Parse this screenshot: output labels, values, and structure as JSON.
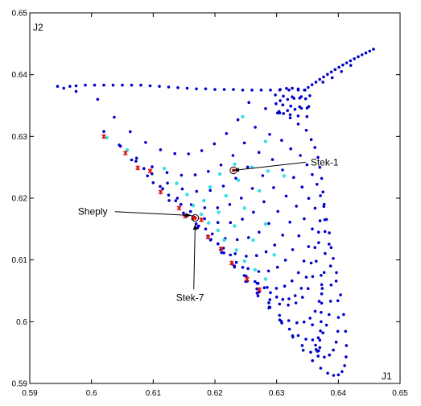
{
  "chart_data": {
    "type": "scatter",
    "xlabel": "J1",
    "ylabel": "J2",
    "xlim": [
      0.59,
      0.65
    ],
    "ylim": [
      0.59,
      0.65
    ],
    "xticks": [
      "0.59",
      "0.6",
      "0.61",
      "0.62",
      "0.63",
      "0.64",
      "0.65"
    ],
    "yticks": [
      "0.59",
      "0.6",
      "0.61",
      "0.62",
      "0.63",
      "0.64",
      "0.65"
    ],
    "grid": false,
    "colors": {
      "blue": "#0000cc",
      "cyan": "#33e0e8",
      "red": "#dd1111",
      "ring": "#000000"
    },
    "red_points": [
      [
        0.602,
        0.63
      ],
      [
        0.6055,
        0.6273
      ],
      [
        0.6075,
        0.6249
      ],
      [
        0.6095,
        0.6244
      ],
      [
        0.6112,
        0.621
      ],
      [
        0.6142,
        0.6184
      ],
      [
        0.6152,
        0.6171
      ],
      [
        0.6165,
        0.6168
      ],
      [
        0.6178,
        0.6165
      ],
      [
        0.6189,
        0.6137
      ],
      [
        0.621,
        0.6118
      ],
      [
        0.6227,
        0.6095
      ],
      [
        0.6252,
        0.6069
      ],
      [
        0.6272,
        0.6052
      ]
    ],
    "cyan_points": [
      [
        0.6245,
        0.6332
      ],
      [
        0.6282,
        0.6292
      ],
      [
        0.6118,
        0.6248
      ],
      [
        0.6138,
        0.6224
      ],
      [
        0.6155,
        0.6206
      ],
      [
        0.6165,
        0.6188
      ],
      [
        0.6178,
        0.6174
      ],
      [
        0.619,
        0.616
      ],
      [
        0.6205,
        0.6148
      ],
      [
        0.6215,
        0.6132
      ],
      [
        0.6235,
        0.6116
      ],
      [
        0.6248,
        0.6098
      ],
      [
        0.6265,
        0.6084
      ],
      [
        0.6282,
        0.6069
      ],
      [
        0.6182,
        0.6196
      ],
      [
        0.6206,
        0.6177
      ],
      [
        0.6232,
        0.6155
      ],
      [
        0.6262,
        0.6132
      ],
      [
        0.6296,
        0.6108
      ],
      [
        0.6192,
        0.6218
      ],
      [
        0.6218,
        0.6204
      ],
      [
        0.6248,
        0.6184
      ],
      [
        0.6282,
        0.6158
      ],
      [
        0.6208,
        0.6239
      ],
      [
        0.6238,
        0.6229
      ],
      [
        0.6272,
        0.6212
      ],
      [
        0.6232,
        0.6255
      ],
      [
        0.626,
        0.625
      ],
      [
        0.6286,
        0.6244
      ],
      [
        0.6312,
        0.6236
      ],
      [
        0.6025,
        0.6298
      ],
      [
        0.6058,
        0.6278
      ]
    ],
    "special_points": [
      {
        "name": "Stek-1",
        "x": 0.623,
        "y": 0.6245
      },
      {
        "name": "Stek-7",
        "x": 0.6168,
        "y": 0.6168
      }
    ],
    "annotations": [
      {
        "label": "Stek-1",
        "target": [
          0.623,
          0.6245
        ],
        "text_at": [
          0.6355,
          0.6253
        ]
      },
      {
        "label": "Sheply",
        "target": [
          0.6162,
          0.6172
        ],
        "text_at": [
          0.5978,
          0.6173
        ]
      },
      {
        "label": "Stek-7",
        "target": [
          0.6168,
          0.6158
        ],
        "text_at": [
          0.6137,
          0.6034
        ]
      }
    ]
  }
}
